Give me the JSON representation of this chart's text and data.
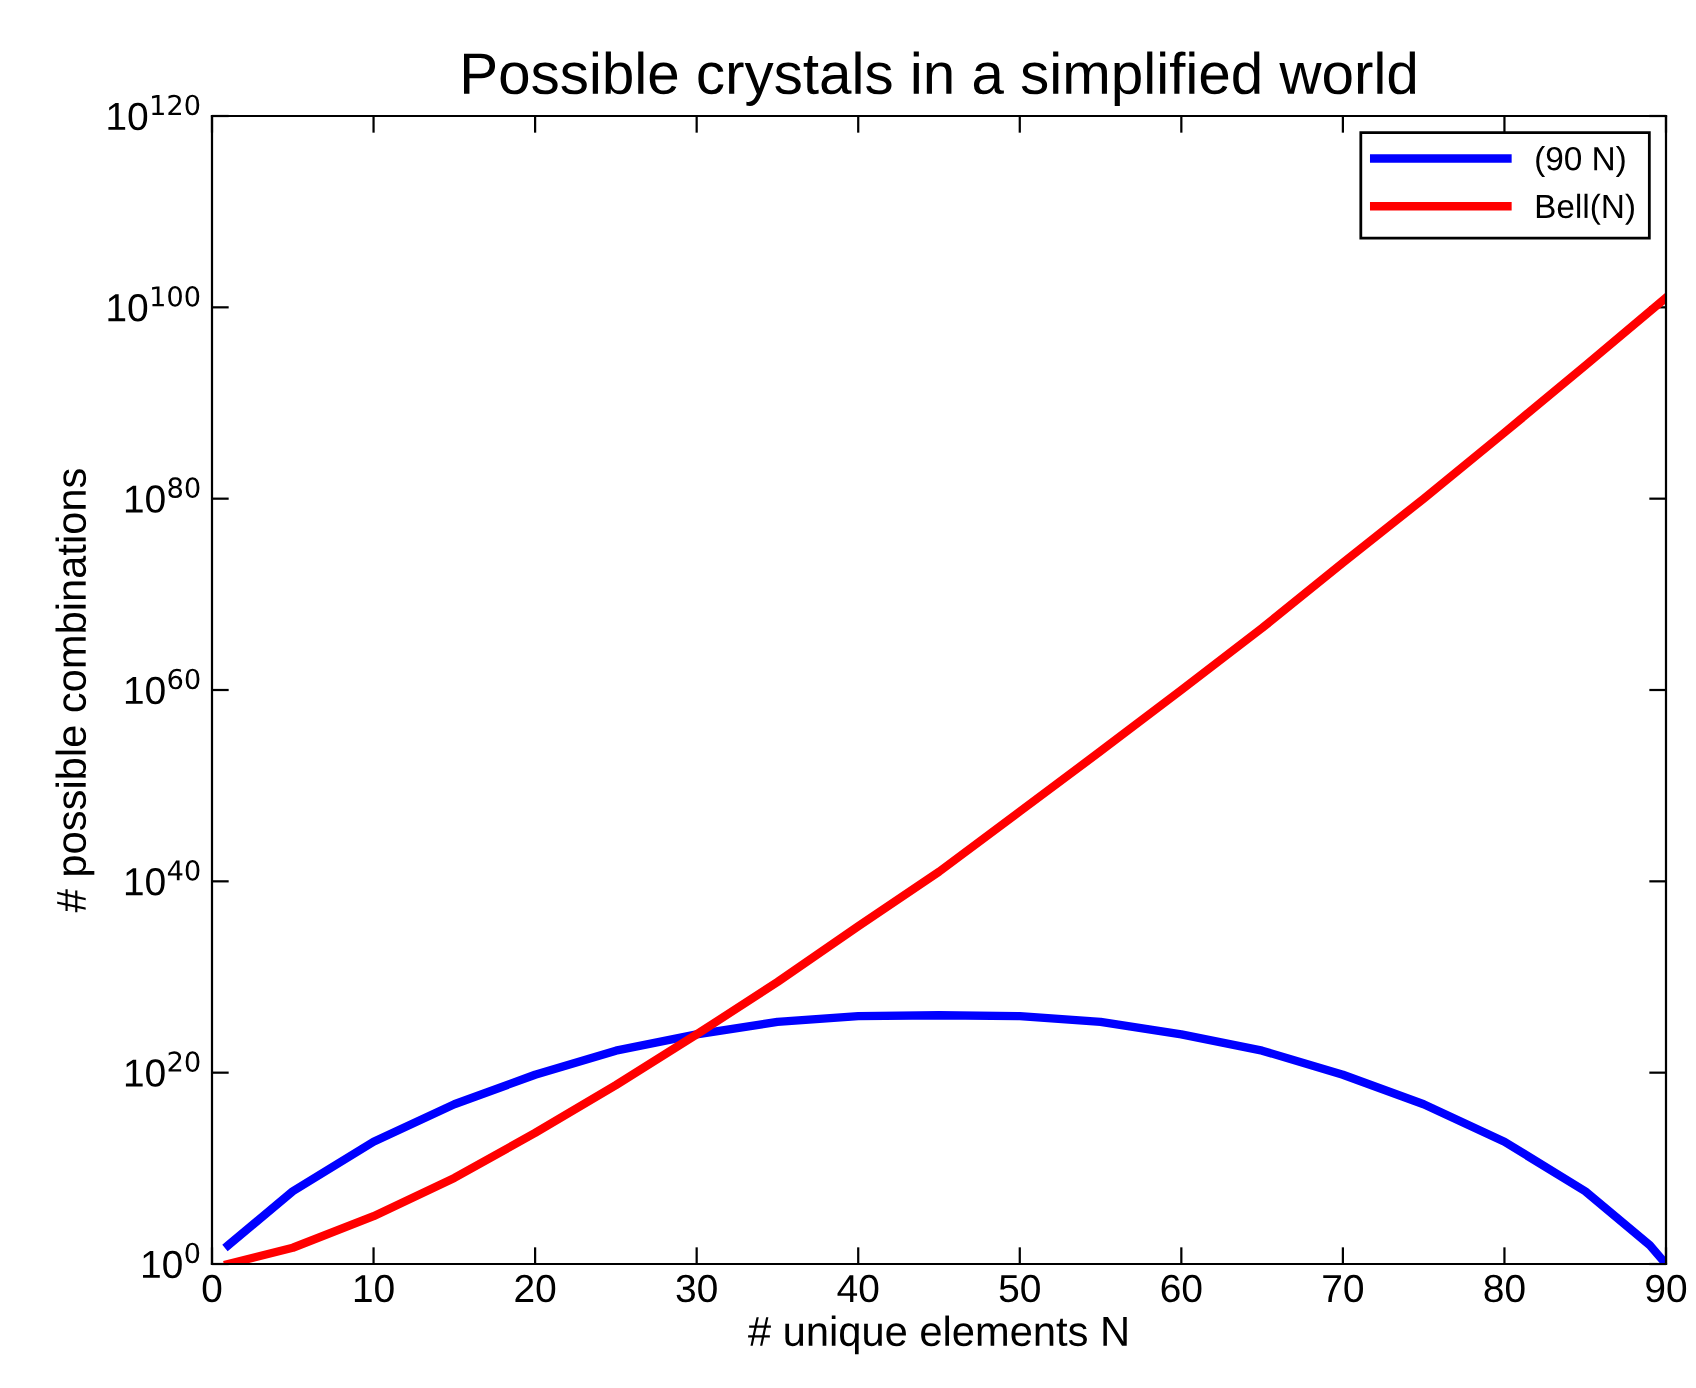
{
  "chart_data": {
    "type": "line",
    "title": "Possible crystals in a simplified world",
    "xlabel": "# unique elements N",
    "ylabel": "# possible combinations",
    "log": "y",
    "legend": "top right",
    "grid": false,
    "xlim": [
      0,
      90
    ],
    "xticks": [
      0,
      10,
      20,
      30,
      40,
      50,
      60,
      70,
      80,
      90
    ],
    "ylim": [
      1,
      1e+120
    ],
    "yticks": [
      {
        "value": 1,
        "label": "10$^{0}$"
      },
      {
        "value": 1e+20,
        "label": "10$^{20}$"
      },
      {
        "value": 1e+40,
        "label": "10$^{40}$"
      },
      {
        "value": 1e+60,
        "label": "10$^{60}$"
      },
      {
        "value": 1e+80,
        "label": "10$^{80}$"
      },
      {
        "value": 1e+100,
        "label": "10$^{100}$"
      },
      {
        "value": 1e+120,
        "label": "10$^{120}$"
      }
    ],
    "series": [
      {
        "name": "(90 N)",
        "color": "#0000ff",
        "x": [
          1,
          5,
          10,
          15,
          20,
          25,
          30,
          35,
          40,
          45,
          50,
          55,
          60,
          65,
          70,
          75,
          80,
          85,
          89,
          90
        ],
        "values": [
          90.0,
          40000000.0,
          6000000000000.0,
          5e+16,
          6e+19,
          2e+22,
          1e+24,
          2e+25,
          8e+25,
          1e+26,
          8e+25,
          2e+25,
          1e+24,
          2e+22,
          6e+19,
          5e+16,
          6000000000000.0,
          40000000.0,
          90.0,
          1
        ]
      },
      {
        "name": "Bell(N)",
        "color": "#ff0000",
        "x": [
          1,
          5,
          10,
          15,
          20,
          25,
          30,
          35,
          40,
          45,
          50,
          55,
          60,
          65,
          70,
          75,
          80,
          85,
          90
        ],
        "values": [
          1,
          50.0,
          100000.0,
          1000000000.0,
          50000000000000.0,
          5e+18,
          1e+24,
          3e+29,
          2e+35,
          1e+41,
          2e+47,
          4e+53,
          1e+60,
          3e+66,
          2e+73,
          1e+80,
          8e+86,
          8e+93,
          1e+101
        ]
      }
    ]
  }
}
